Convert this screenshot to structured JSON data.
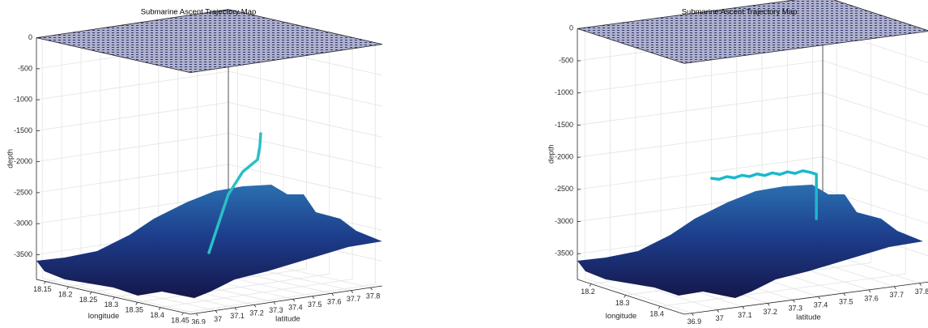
{
  "chart_data": [
    {
      "type": "trajectory3d",
      "title": "Submarine Ascent Trajectory Map",
      "xlabel": "longitude",
      "ylabel": "latitude",
      "zlabel": "depth",
      "xlim": [
        18.13,
        18.465
      ],
      "ylim": [
        36.87,
        37.86
      ],
      "zlim": [
        -3900,
        0
      ],
      "xticks": [
        18.15,
        18.2,
        18.25,
        18.3,
        18.35,
        18.4,
        18.45
      ],
      "yticks": [
        36.9,
        37,
        37.1,
        37.2,
        37.3,
        37.4,
        37.5,
        37.6,
        37.7,
        37.8
      ],
      "zticks": [
        -3500,
        -3000,
        -2500,
        -2000,
        -1500,
        -1000,
        -500,
        0
      ],
      "grid": true,
      "trajectory": {
        "color": "#2bbfc4",
        "x": [
          18.3,
          18.3,
          18.3,
          18.3,
          18.3,
          18.3,
          18.3
        ],
        "y": [
          37.357,
          37.408,
          37.457,
          37.532,
          37.608,
          37.62,
          37.624
        ],
        "z": [
          -3409,
          -2949,
          -2514,
          -2182,
          -2022,
          -1805,
          -1611
        ]
      }
    },
    {
      "type": "trajectory3d",
      "title": "Submarine Ascent Trajectory Map",
      "xlabel": "longitude",
      "ylabel": "latitude",
      "zlabel": "depth",
      "xlim": [
        18.16,
        18.47
      ],
      "ylim": [
        36.87,
        37.84
      ],
      "zlim": [
        -3900,
        0
      ],
      "xticks": [
        18.2,
        18.3,
        18.4
      ],
      "yticks": [
        36.9,
        37,
        37.1,
        37.2,
        37.3,
        37.4,
        37.5,
        37.6,
        37.7,
        37.8
      ],
      "zticks": [
        -3500,
        -3000,
        -2500,
        -2000,
        -1500,
        -1000,
        -500,
        0
      ],
      "grid": true,
      "trajectory": {
        "color": "#1cb8cc",
        "x": [
          18.3,
          18.3,
          18.3,
          18.3,
          18.3,
          18.3,
          18.3,
          18.3,
          18.3,
          18.3,
          18.3,
          18.3,
          18.3,
          18.3,
          18.3,
          18.3,
          18.3
        ],
        "y": [
          37.21,
          37.24,
          37.27,
          37.3,
          37.33,
          37.36,
          37.39,
          37.42,
          37.45,
          37.48,
          37.51,
          37.54,
          37.57,
          37.6,
          37.624,
          37.624,
          37.624
        ],
        "z": [
          -2260,
          -2290,
          -2265,
          -2300,
          -2275,
          -2310,
          -2285,
          -2325,
          -2300,
          -2340,
          -2315,
          -2355,
          -2330,
          -2370,
          -2410,
          -2750,
          -3103
        ]
      }
    }
  ]
}
